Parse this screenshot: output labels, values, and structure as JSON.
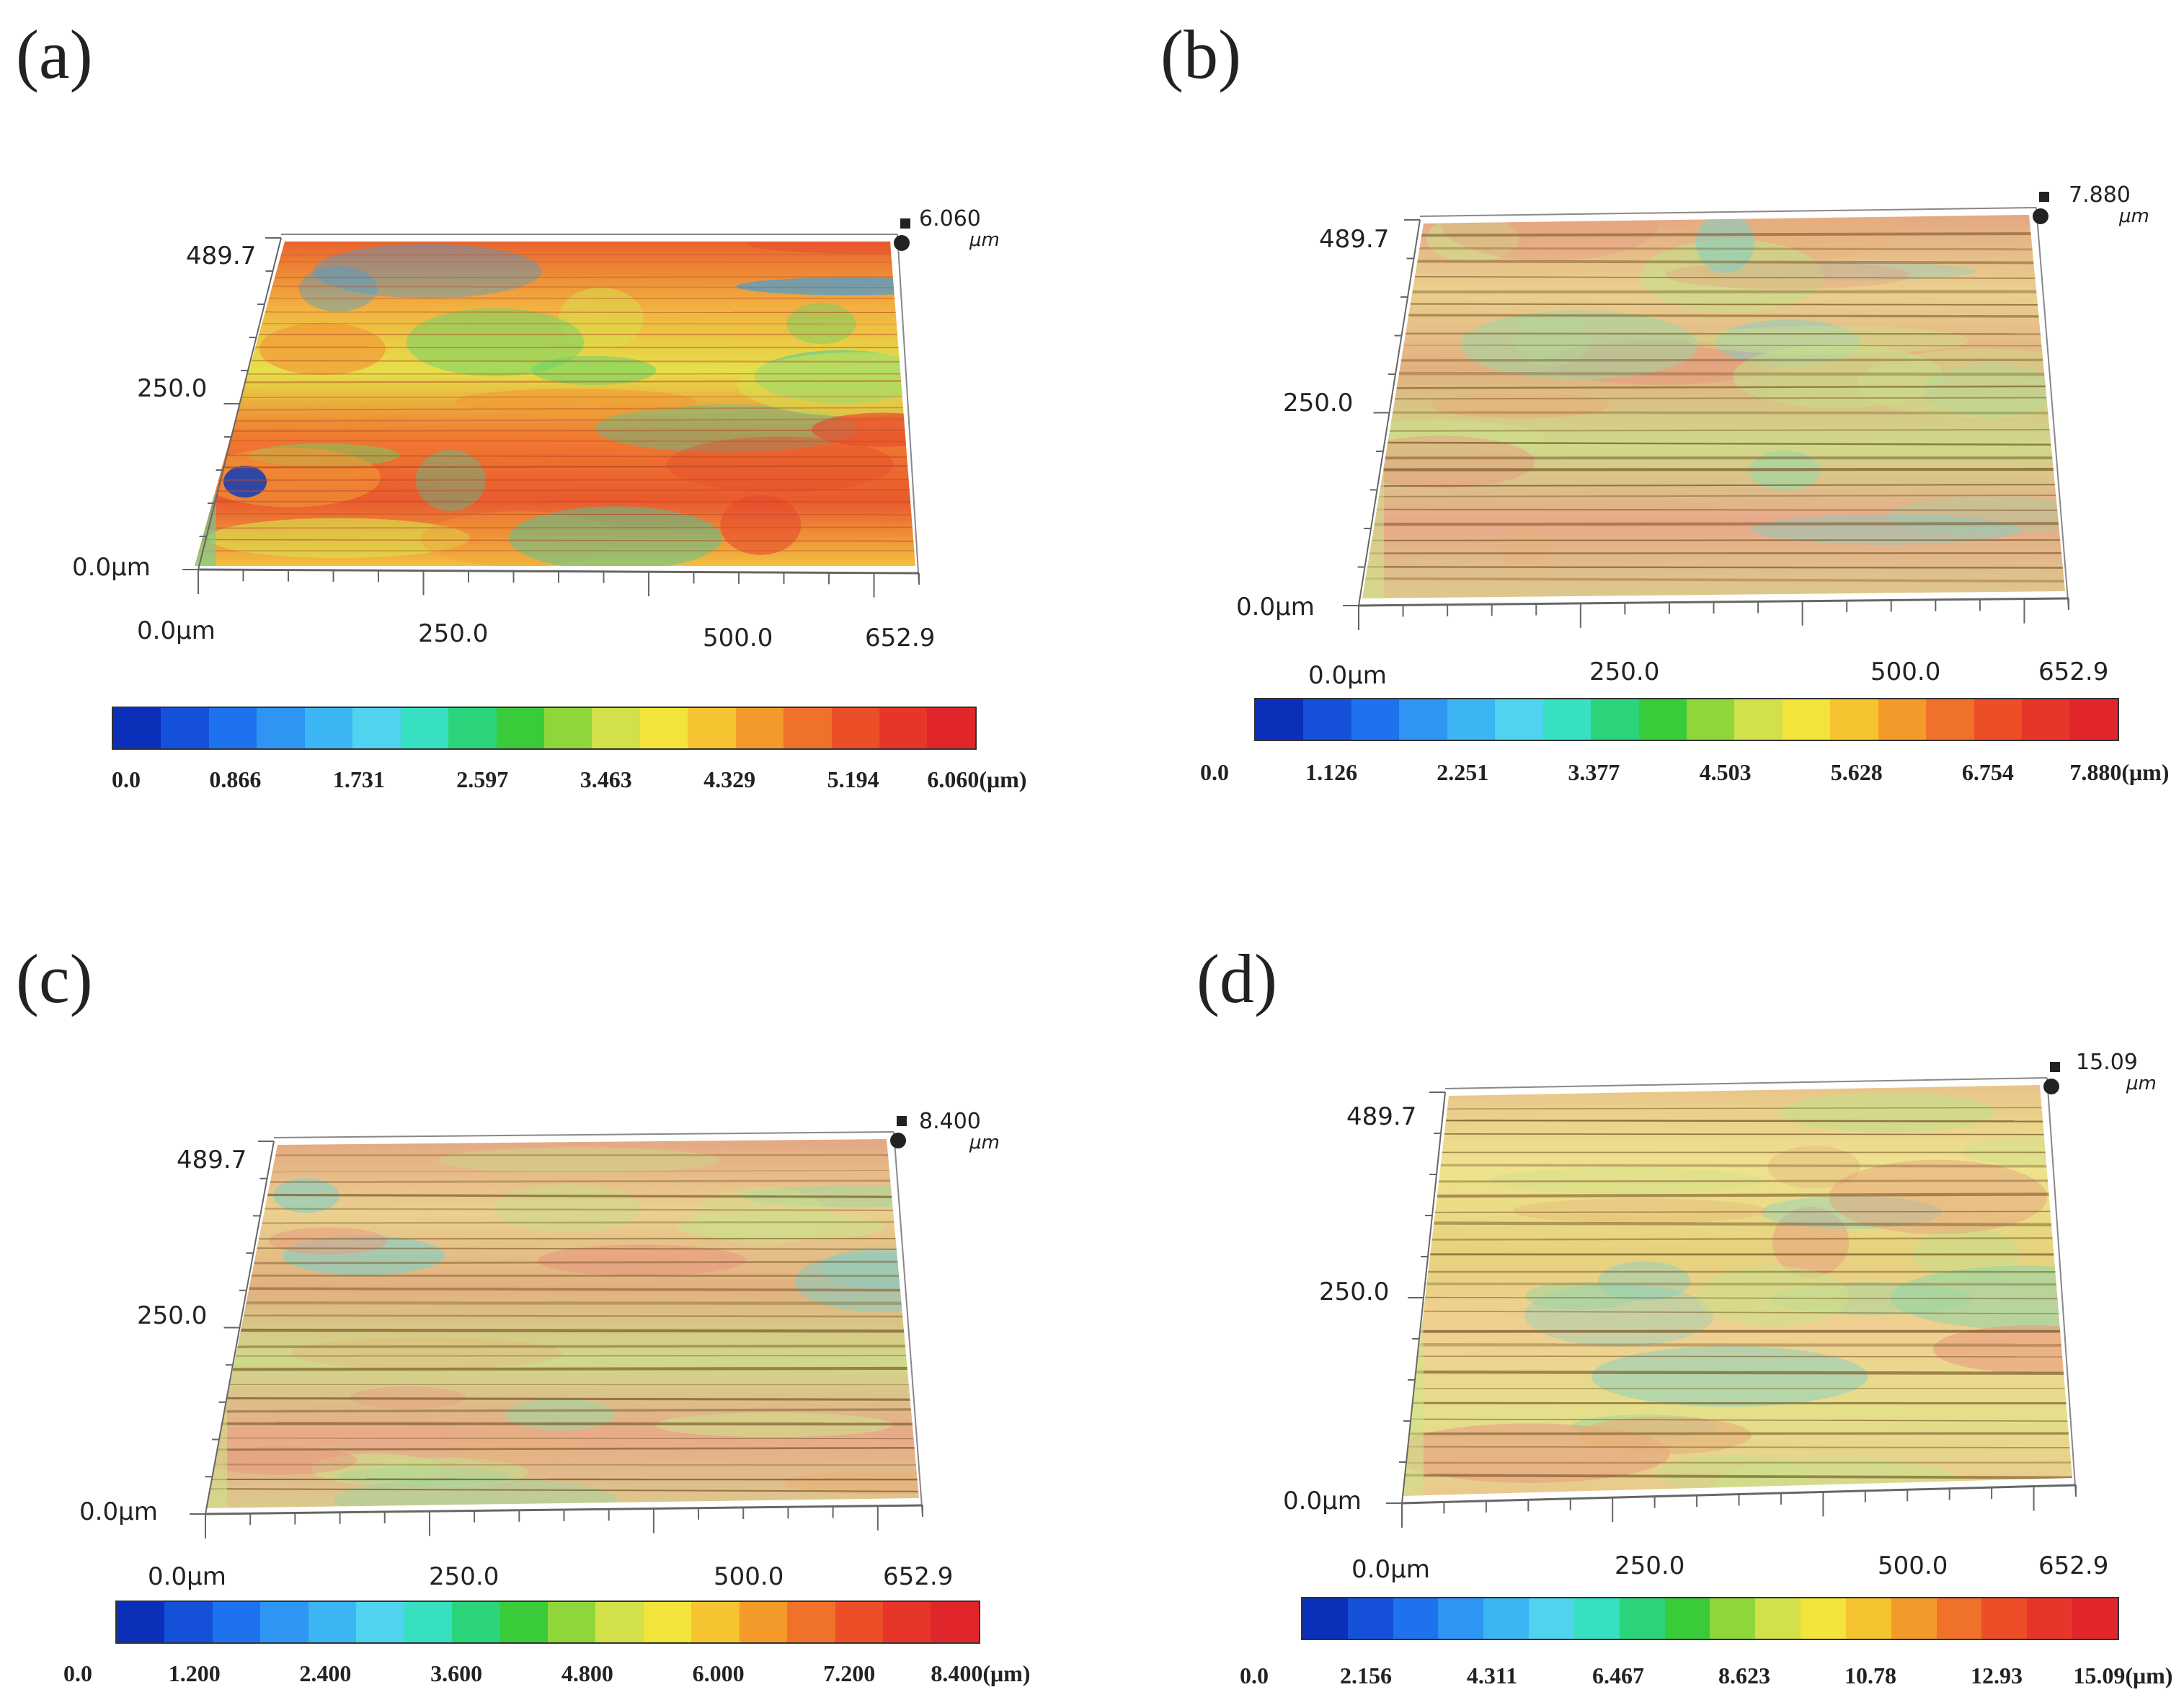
{
  "figure": {
    "panels": [
      {
        "label": "(a)",
        "y_axis": {
          "top": "489.7",
          "mid": "250.0",
          "origin": "0.0μm"
        },
        "x_axis": {
          "origin": "0.0μm",
          "t1": "250.0",
          "t2": "500.0",
          "end": "652.9"
        },
        "z_max": "6.060",
        "z_unit": "μm",
        "colorbar_ticks": [
          "0.0",
          "0.866",
          "1.731",
          "2.597",
          "3.463",
          "4.329",
          "5.194",
          "6.060(μm)"
        ],
        "surface_tone": "warm-red"
      },
      {
        "label": "(b)",
        "y_axis": {
          "top": "489.7",
          "mid": "250.0",
          "origin": "0.0μm"
        },
        "x_axis": {
          "origin": "0.0μm",
          "t1": "250.0",
          "t2": "500.0",
          "end": "652.9"
        },
        "z_max": "7.880",
        "z_unit": "μm",
        "colorbar_ticks": [
          "0.0",
          "1.126",
          "2.251",
          "3.377",
          "4.503",
          "5.628",
          "6.754",
          "7.880(μm)"
        ],
        "surface_tone": "tan"
      },
      {
        "label": "(c)",
        "y_axis": {
          "top": "489.7",
          "mid": "250.0",
          "origin": "0.0μm"
        },
        "x_axis": {
          "origin": "0.0μm",
          "t1": "250.0",
          "t2": "500.0",
          "end": "652.9"
        },
        "z_max": "8.400",
        "z_unit": "μm",
        "colorbar_ticks": [
          "0.0",
          "1.200",
          "2.400",
          "3.600",
          "4.800",
          "6.000",
          "7.200",
          "8.400(μm)"
        ],
        "surface_tone": "tan"
      },
      {
        "label": "(d)",
        "y_axis": {
          "top": "489.7",
          "mid": "250.0",
          "origin": "0.0μm"
        },
        "x_axis": {
          "origin": "0.0μm",
          "t1": "250.0",
          "t2": "500.0",
          "end": "652.9"
        },
        "z_max": "15.09",
        "z_unit": "μm",
        "colorbar_ticks": [
          "0.0",
          "2.156",
          "4.311",
          "6.467",
          "8.623",
          "10.78",
          "12.93",
          "15.09(μm)"
        ],
        "surface_tone": "yellow"
      }
    ],
    "colormap": [
      "#0b2fb8",
      "#1550d8",
      "#1f72ee",
      "#2e95f2",
      "#3cb5f4",
      "#4fd3ee",
      "#36e0c0",
      "#2bd47a",
      "#3acb3a",
      "#8fd63a",
      "#d2e04a",
      "#f2e43a",
      "#f5c430",
      "#f49a2a",
      "#f0722a",
      "#ec4e28",
      "#e8352a",
      "#e0262a"
    ]
  }
}
